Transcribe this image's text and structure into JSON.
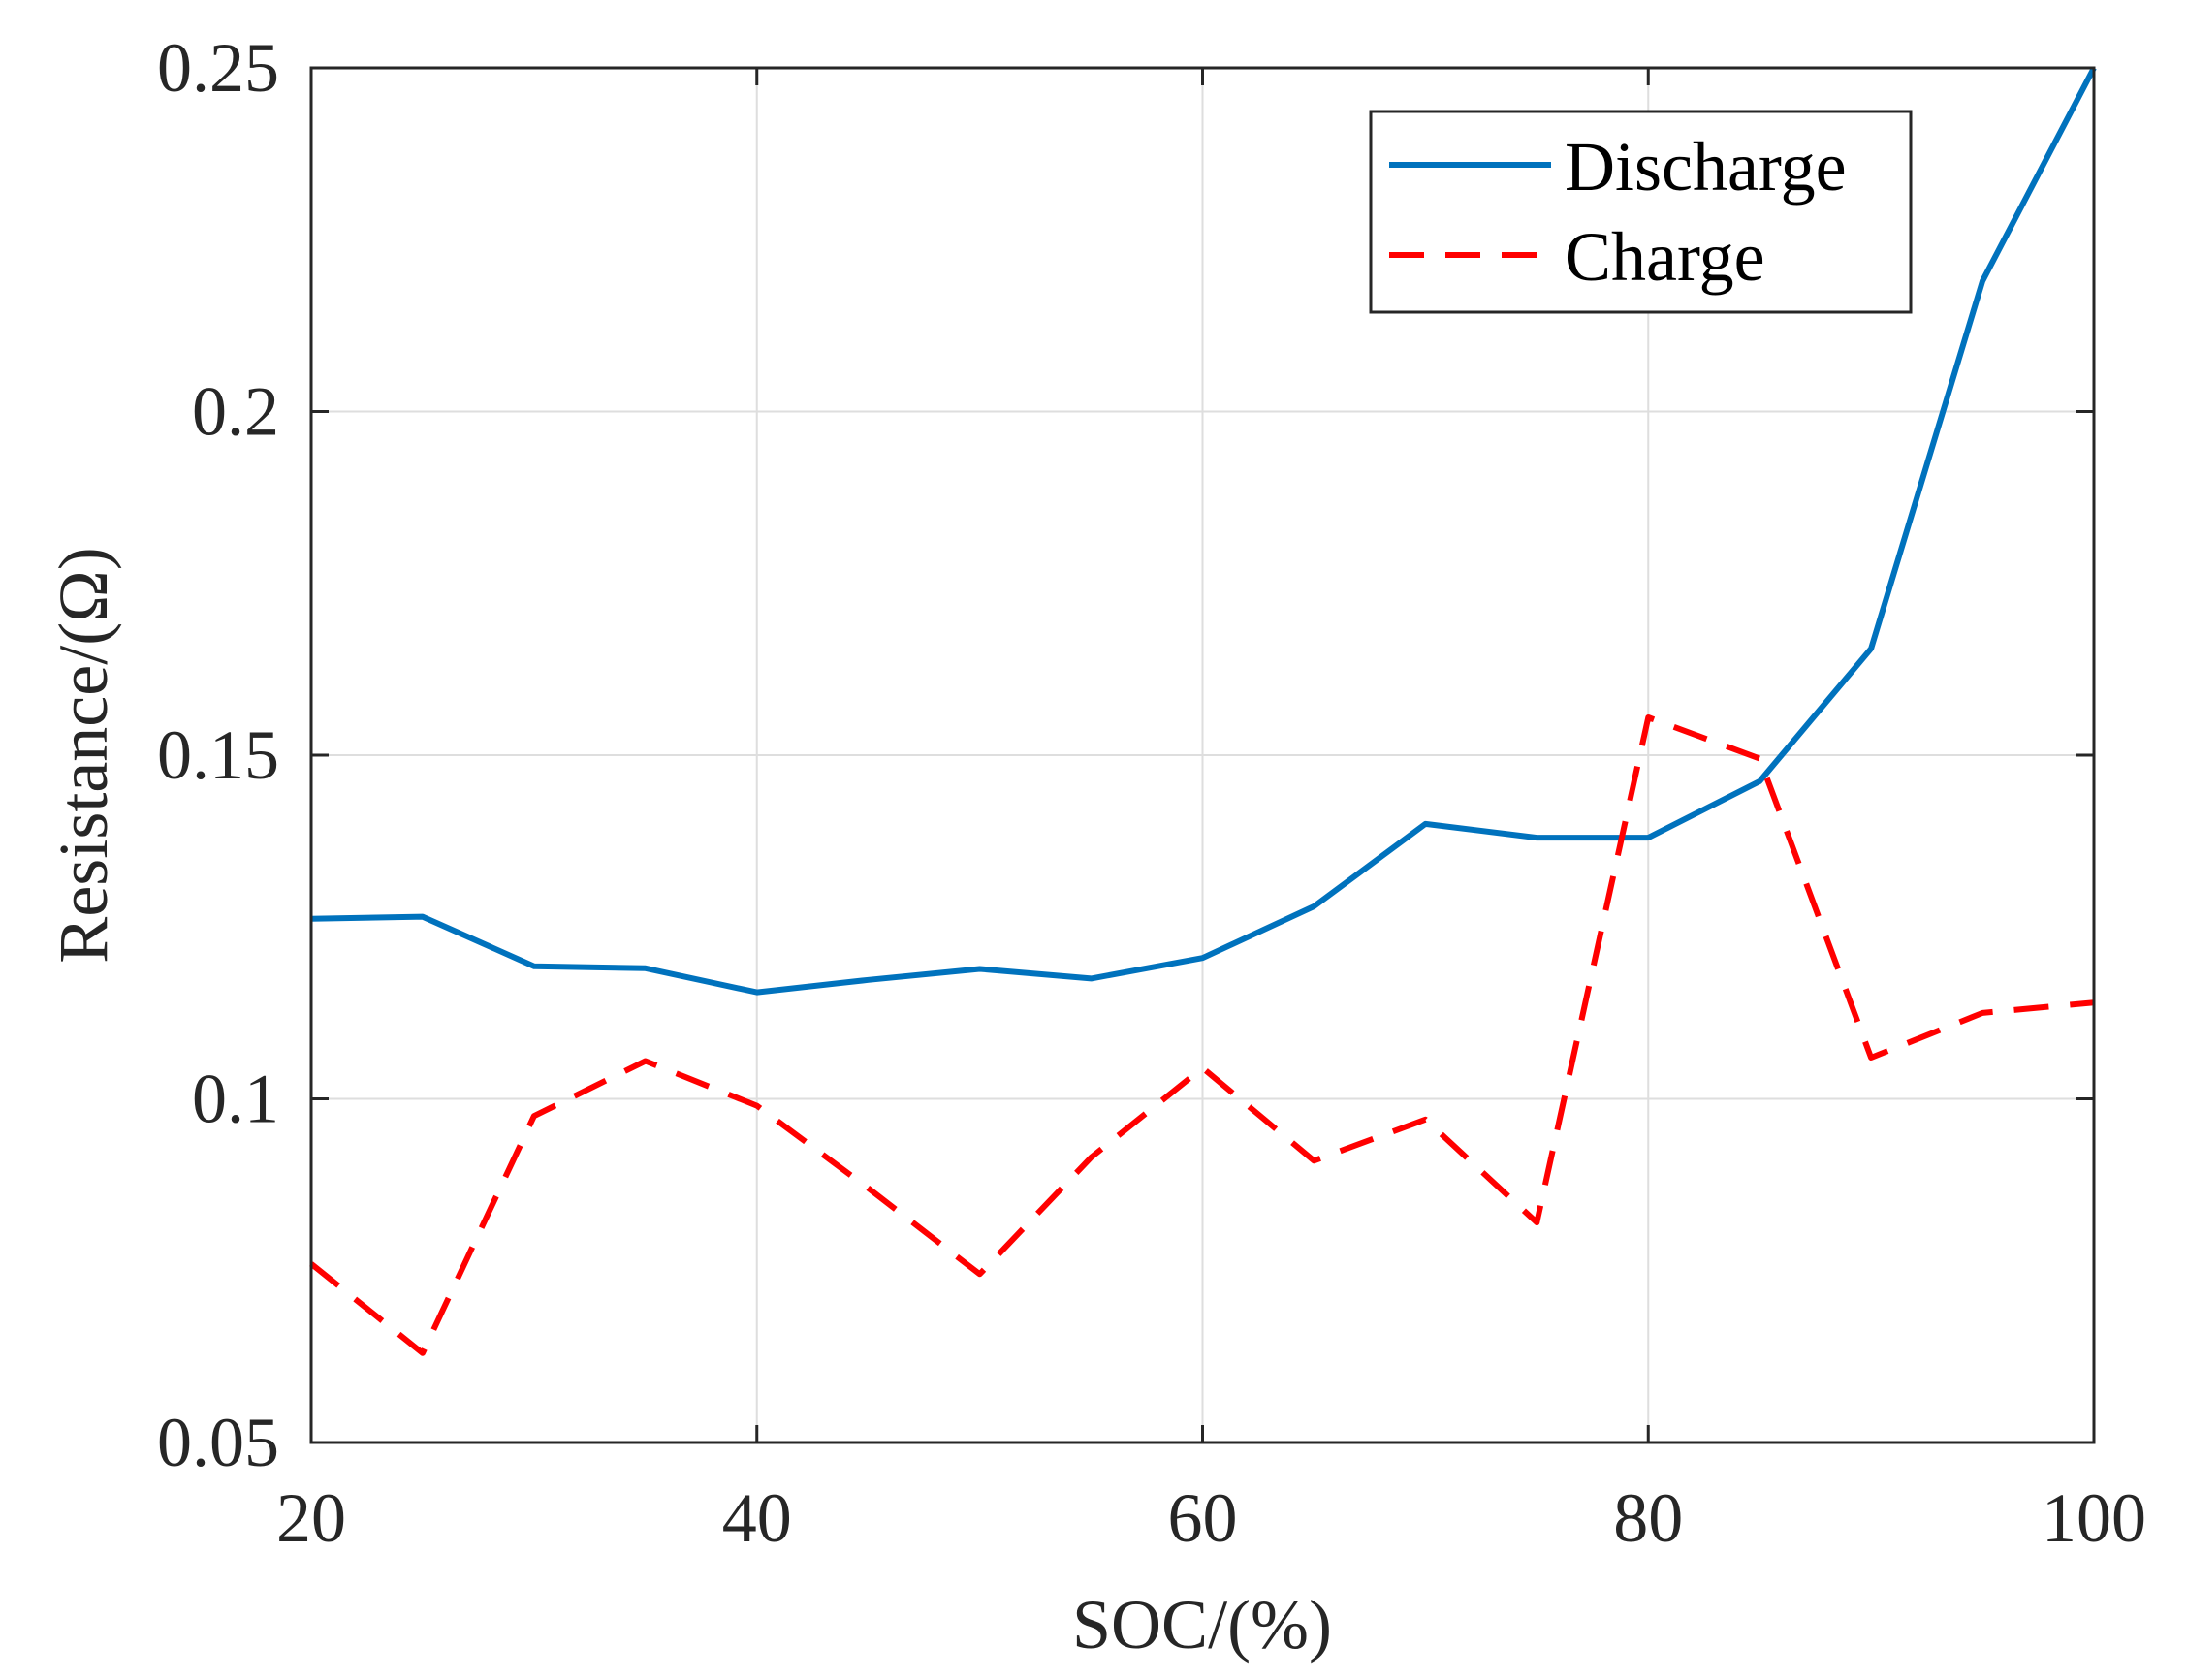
{
  "chart_data": {
    "type": "line",
    "title": "",
    "xlabel": "SOC/(%)",
    "ylabel": "Resistance/(Ω)",
    "xlim": [
      20,
      100
    ],
    "ylim": [
      0.05,
      0.25
    ],
    "xticks": [
      20,
      40,
      60,
      80,
      100
    ],
    "yticks": [
      0.05,
      0.1,
      0.15,
      0.2,
      0.25
    ],
    "xtick_labels": [
      "20",
      "40",
      "60",
      "80",
      "100"
    ],
    "ytick_labels": [
      "0.05",
      "0.1",
      "0.15",
      "0.2",
      "0.25"
    ],
    "grid": true,
    "legend_position": "top-right",
    "x": [
      20,
      25,
      30,
      35,
      40,
      45,
      50,
      55,
      60,
      65,
      70,
      75,
      80,
      85,
      90,
      95,
      100
    ],
    "series": [
      {
        "name": "Discharge",
        "color": "#0072BD",
        "style": "solid",
        "values": [
          0.1262,
          0.1265,
          0.1193,
          0.119,
          0.1155,
          0.1173,
          0.1189,
          0.1175,
          0.1205,
          0.128,
          0.14,
          0.138,
          0.138,
          0.1462,
          0.1655,
          0.219,
          0.25
        ]
      },
      {
        "name": "Charge",
        "color": "#FF0000",
        "style": "dashed",
        "values": [
          0.076,
          0.063,
          0.0975,
          0.1055,
          0.099,
          0.087,
          0.0745,
          0.0915,
          0.1045,
          0.091,
          0.097,
          0.082,
          0.1555,
          0.1495,
          0.106,
          0.1125,
          0.114
        ]
      }
    ]
  }
}
